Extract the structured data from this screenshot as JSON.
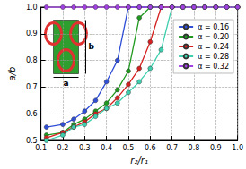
{
  "chart_data": {
    "type": "line",
    "x_label": "r₂/r₁",
    "y_label": "a/b",
    "x": [
      0.125,
      0.2,
      0.25,
      0.3,
      0.35,
      0.4,
      0.45,
      0.5,
      0.55,
      0.6,
      0.65,
      0.7,
      0.75,
      0.8,
      0.85,
      0.9,
      0.95,
      1.0
    ],
    "series": [
      {
        "name": "α = 0.16",
        "color": "#2f4fd6",
        "values": [
          0.55,
          0.56,
          0.58,
          0.61,
          0.65,
          0.72,
          0.8,
          1.0,
          1.0,
          1.0,
          1.0,
          1.0,
          1.0,
          1.0,
          1.0,
          1.0,
          1.0,
          1.0
        ]
      },
      {
        "name": "α = 0.20",
        "color": "#1f9a1f",
        "values": [
          0.52,
          0.53,
          0.56,
          0.58,
          0.61,
          0.64,
          0.69,
          0.76,
          0.96,
          1.0,
          1.0,
          1.0,
          1.0,
          1.0,
          1.0,
          1.0,
          1.0,
          1.0
        ]
      },
      {
        "name": "α = 0.24",
        "color": "#d62020",
        "values": [
          0.51,
          0.53,
          0.55,
          0.57,
          0.6,
          0.62,
          0.66,
          0.71,
          0.77,
          0.87,
          1.0,
          1.0,
          1.0,
          1.0,
          1.0,
          1.0,
          1.0,
          1.0
        ]
      },
      {
        "name": "α = 0.28",
        "color": "#3ecfae",
        "values": [
          0.5,
          0.52,
          0.55,
          0.56,
          0.59,
          0.62,
          0.64,
          0.68,
          0.72,
          0.77,
          0.84,
          1.0,
          1.0,
          1.0,
          1.0,
          1.0,
          1.0,
          1.0
        ]
      },
      {
        "name": "α = 0.32",
        "color": "#a040e0",
        "values": [
          1.0,
          1.0,
          1.0,
          1.0,
          1.0,
          1.0,
          1.0,
          1.0,
          1.0,
          1.0,
          1.0,
          1.0,
          1.0,
          1.0,
          1.0,
          1.0,
          1.0,
          1.0
        ]
      }
    ],
    "xlim": [
      0.1,
      1.0
    ],
    "xticks": [
      0.1,
      0.2,
      0.3,
      0.4,
      0.5,
      0.6,
      0.7,
      0.8,
      0.9,
      {
        "value": 1.0,
        "label": "1.0"
      }
    ],
    "ylim": [
      0.5,
      1.0
    ],
    "yticks": [
      0.5,
      0.6,
      0.7,
      0.8,
      0.9,
      {
        "value": 1.0,
        "label": "1.0"
      }
    ],
    "grid": true,
    "legend": "upper right",
    "marker": "circle",
    "line_style": "solid",
    "annotations": [
      "a",
      "b"
    ]
  }
}
